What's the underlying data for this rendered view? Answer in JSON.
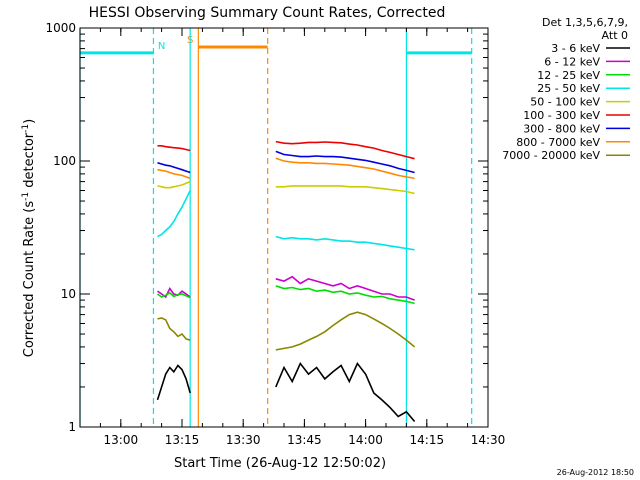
{
  "chart_data": {
    "type": "line",
    "title": "HESSI Observing Summary Count Rates, Corrected",
    "xlabel": "Start Time (26-Aug-12 12:50:02)",
    "ylabel": "Corrected Count Rate (s",
    "ylabel_sup1": "-1",
    "ylabel_mid": " detector",
    "ylabel_sup2": "-1",
    "ylabel_end": ")",
    "yscale": "log",
    "ylim": [
      1,
      1000
    ],
    "xlim": [
      "12:50",
      "14:30"
    ],
    "x_ticks": [
      "13:00",
      "13:15",
      "13:30",
      "13:45",
      "14:00",
      "14:15",
      "14:30"
    ],
    "y_ticks": [
      "1",
      "10",
      "100",
      "1000"
    ],
    "legend_header": [
      "Det 1,3,5,6,7,9,",
      "Att 0"
    ],
    "legend_position": "right",
    "footer": "26-Aug-2012 18:50",
    "series": [
      {
        "name": "3 - 6 keV",
        "color": "#000000",
        "segments": [
          {
            "x": [
              "13:09",
              "13:10",
              "13:11",
              "13:12",
              "13:13",
              "13:14",
              "13:15",
              "13:16",
              "13:17"
            ],
            "y": [
              1.6,
              2.0,
              2.5,
              2.8,
              2.6,
              2.9,
              2.7,
              2.3,
              1.8
            ]
          },
          {
            "x": [
              "13:38",
              "13:40",
              "13:42",
              "13:44",
              "13:46",
              "13:48",
              "13:50",
              "13:52",
              "13:54",
              "13:56",
              "13:58",
              "14:00",
              "14:02",
              "14:04",
              "14:06",
              "14:08",
              "14:10",
              "14:12"
            ],
            "y": [
              2.0,
              2.8,
              2.2,
              3.0,
              2.5,
              2.8,
              2.3,
              2.6,
              2.9,
              2.2,
              3.0,
              2.5,
              1.8,
              1.6,
              1.4,
              1.2,
              1.3,
              1.1
            ]
          }
        ]
      },
      {
        "name": "6 - 12 keV",
        "color": "#cc00cc",
        "segments": [
          {
            "x": [
              "13:09",
              "13:10",
              "13:11",
              "13:12",
              "13:13",
              "13:14",
              "13:15",
              "13:16",
              "13:17"
            ],
            "y": [
              10.5,
              10,
              9.5,
              11,
              10,
              9.8,
              10.5,
              10,
              9.5
            ]
          },
          {
            "x": [
              "13:38",
              "13:40",
              "13:42",
              "13:44",
              "13:46",
              "13:48",
              "13:50",
              "13:52",
              "13:54",
              "13:56",
              "13:58",
              "14:00",
              "14:02",
              "14:04",
              "14:06",
              "14:08",
              "14:10",
              "14:12"
            ],
            "y": [
              13,
              12.5,
              13.5,
              12,
              13,
              12.5,
              12,
              11.5,
              12,
              11,
              11.5,
              11,
              10.5,
              10,
              10,
              9.5,
              9.5,
              9
            ]
          }
        ]
      },
      {
        "name": "12 - 25 keV",
        "color": "#00dd00",
        "segments": [
          {
            "x": [
              "13:09",
              "13:10",
              "13:11",
              "13:12",
              "13:13",
              "13:14",
              "13:15",
              "13:16",
              "13:17"
            ],
            "y": [
              10,
              9.5,
              9.8,
              10.2,
              9.6,
              9.9,
              10,
              9.7,
              9.4
            ]
          },
          {
            "x": [
              "13:38",
              "13:40",
              "13:42",
              "13:44",
              "13:46",
              "13:48",
              "13:50",
              "13:52",
              "13:54",
              "13:56",
              "13:58",
              "14:00",
              "14:02",
              "14:04",
              "14:06",
              "14:08",
              "14:10",
              "14:12"
            ],
            "y": [
              11.5,
              11,
              11.2,
              10.8,
              11,
              10.5,
              10.7,
              10.3,
              10.5,
              10,
              10.2,
              9.8,
              9.5,
              9.6,
              9.2,
              9,
              8.8,
              8.5
            ]
          }
        ]
      },
      {
        "name": "25 - 50 keV",
        "color": "#00e5e5",
        "segments": [
          {
            "x": [
              "13:09",
              "13:10",
              "13:11",
              "13:12",
              "13:13",
              "13:14",
              "13:15",
              "13:16",
              "13:17"
            ],
            "y": [
              27,
              28,
              30,
              32,
              35,
              40,
              45,
              52,
              60
            ]
          },
          {
            "x": [
              "13:38",
              "13:40",
              "13:42",
              "13:44",
              "13:46",
              "13:48",
              "13:50",
              "13:52",
              "13:54",
              "13:56",
              "13:58",
              "14:00",
              "14:02",
              "14:04",
              "14:06",
              "14:08",
              "14:10",
              "14:12"
            ],
            "y": [
              27,
              26,
              26.5,
              26,
              26,
              25.5,
              26,
              25.5,
              25,
              25,
              24.5,
              24.5,
              24,
              23.5,
              23,
              22.5,
              22,
              21.5
            ]
          }
        ]
      },
      {
        "name": "50 - 100 keV",
        "color": "#cccc00",
        "segments": [
          {
            "x": [
              "13:09",
              "13:10",
              "13:11",
              "13:12",
              "13:13",
              "13:14",
              "13:15",
              "13:16",
              "13:17"
            ],
            "y": [
              65,
              64,
              63,
              63,
              64,
              65,
              66,
              68,
              70
            ]
          },
          {
            "x": [
              "13:38",
              "13:40",
              "13:42",
              "13:44",
              "13:46",
              "13:48",
              "13:50",
              "13:52",
              "13:54",
              "13:56",
              "13:58",
              "14:00",
              "14:02",
              "14:04",
              "14:06",
              "14:08",
              "14:10",
              "14:12"
            ],
            "y": [
              64,
              64,
              65,
              65,
              65,
              65,
              65,
              65,
              65,
              64,
              64,
              64,
              63,
              62,
              61,
              60,
              59,
              57
            ]
          }
        ]
      },
      {
        "name": "100 - 300 keV",
        "color": "#ee0000",
        "segments": [
          {
            "x": [
              "13:09",
              "13:10",
              "13:11",
              "13:12",
              "13:13",
              "13:14",
              "13:15",
              "13:16",
              "13:17"
            ],
            "y": [
              130,
              130,
              128,
              127,
              126,
              125,
              124,
              122,
              120
            ]
          },
          {
            "x": [
              "13:38",
              "13:40",
              "13:42",
              "13:44",
              "13:46",
              "13:48",
              "13:50",
              "13:52",
              "13:54",
              "13:56",
              "13:58",
              "14:00",
              "14:02",
              "14:04",
              "14:06",
              "14:08",
              "14:10",
              "14:12"
            ],
            "y": [
              140,
              136,
              135,
              136,
              138,
              138,
              139,
              138,
              137,
              134,
              132,
              128,
              125,
              120,
              116,
              112,
              108,
              104
            ]
          }
        ]
      },
      {
        "name": "300 - 800 keV",
        "color": "#0000dd",
        "segments": [
          {
            "x": [
              "13:09",
              "13:10",
              "13:11",
              "13:12",
              "13:13",
              "13:14",
              "13:15",
              "13:16",
              "13:17"
            ],
            "y": [
              97,
              95,
              93,
              92,
              90,
              88,
              86,
              84,
              82
            ]
          },
          {
            "x": [
              "13:38",
              "13:40",
              "13:42",
              "13:44",
              "13:46",
              "13:48",
              "13:50",
              "13:52",
              "13:54",
              "13:56",
              "13:58",
              "14:00",
              "14:02",
              "14:04",
              "14:06",
              "14:08",
              "14:10",
              "14:12"
            ],
            "y": [
              118,
              112,
              110,
              108,
              108,
              109,
              108,
              108,
              107,
              105,
              103,
              101,
              98,
              95,
              92,
              88,
              85,
              82
            ]
          }
        ]
      },
      {
        "name": "800 - 7000 keV",
        "color": "#ff8800",
        "segments": [
          {
            "x": [
              "13:09",
              "13:10",
              "13:11",
              "13:12",
              "13:13",
              "13:14",
              "13:15",
              "13:16",
              "13:17"
            ],
            "y": [
              86,
              85,
              84,
              82,
              80,
              79,
              78,
              76,
              74
            ]
          },
          {
            "x": [
              "13:38",
              "13:40",
              "13:42",
              "13:44",
              "13:46",
              "13:48",
              "13:50",
              "13:52",
              "13:54",
              "13:56",
              "13:58",
              "14:00",
              "14:02",
              "14:04",
              "14:06",
              "14:08",
              "14:10",
              "14:12"
            ],
            "y": [
              105,
              100,
              98,
              97,
              97,
              96,
              96,
              95,
              94,
              93,
              91,
              89,
              87,
              84,
              81,
              78,
              76,
              74
            ]
          }
        ]
      },
      {
        "name": "7000 - 20000 keV",
        "color": "#888800",
        "segments": [
          {
            "x": [
              "13:09",
              "13:10",
              "13:11",
              "13:12",
              "13:13",
              "13:14",
              "13:15",
              "13:16",
              "13:17"
            ],
            "y": [
              6.5,
              6.6,
              6.4,
              5.5,
              5.2,
              4.8,
              5.0,
              4.6,
              4.5
            ]
          },
          {
            "x": [
              "13:38",
              "13:40",
              "13:42",
              "13:44",
              "13:46",
              "13:48",
              "13:50",
              "13:52",
              "13:54",
              "13:56",
              "13:58",
              "14:00",
              "14:02",
              "14:04",
              "14:06",
              "14:08",
              "14:10",
              "14:12"
            ],
            "y": [
              3.8,
              3.9,
              4.0,
              4.2,
              4.5,
              4.8,
              5.2,
              5.8,
              6.4,
              7.0,
              7.3,
              7.0,
              6.5,
              6.0,
              5.5,
              5.0,
              4.5,
              4.0
            ]
          }
        ]
      }
    ],
    "markers": [
      {
        "type": "bar",
        "label": "",
        "color": "#00e5e5",
        "x": [
          "12:50",
          "13:08"
        ],
        "y": 650,
        "edges": [
          "none",
          "dashed"
        ]
      },
      {
        "type": "bar",
        "label": "",
        "color": "#00e5e5",
        "x": [
          "14:10",
          "14:26"
        ],
        "y": 650,
        "edges": [
          "solid",
          "dashed"
        ]
      },
      {
        "type": "bar",
        "label": "",
        "color": "#ff8800",
        "x": [
          "13:19",
          "13:36"
        ],
        "y": 720,
        "edges": [
          "solid",
          "dashed"
        ]
      },
      {
        "type": "text",
        "label": "N",
        "color": "#00e5e5",
        "x": "13:10",
        "y": 650
      },
      {
        "type": "text",
        "label": "S",
        "color": "#ff8800",
        "x": "13:17",
        "y": 720
      },
      {
        "type": "vline",
        "label": "",
        "color": "#00e5e5",
        "x": "12:50",
        "style": "solid"
      },
      {
        "type": "vline",
        "label": "",
        "color": "#00e5e5",
        "x": "13:08",
        "style": "dashed"
      },
      {
        "type": "vline",
        "label": "",
        "color": "#00e5e5",
        "x": "13:17",
        "style": "solid"
      },
      {
        "type": "vline",
        "label": "",
        "color": "#ff8800",
        "x": "13:19",
        "style": "solid"
      },
      {
        "type": "vline",
        "label": "",
        "color": "#ff8800",
        "x": "13:36",
        "style": "dashed"
      },
      {
        "type": "vline",
        "label": "",
        "color": "#00e5e5",
        "x": "14:10",
        "style": "solid"
      },
      {
        "type": "vline",
        "label": "",
        "color": "#00e5e5",
        "x": "14:26",
        "style": "dashed"
      }
    ]
  }
}
